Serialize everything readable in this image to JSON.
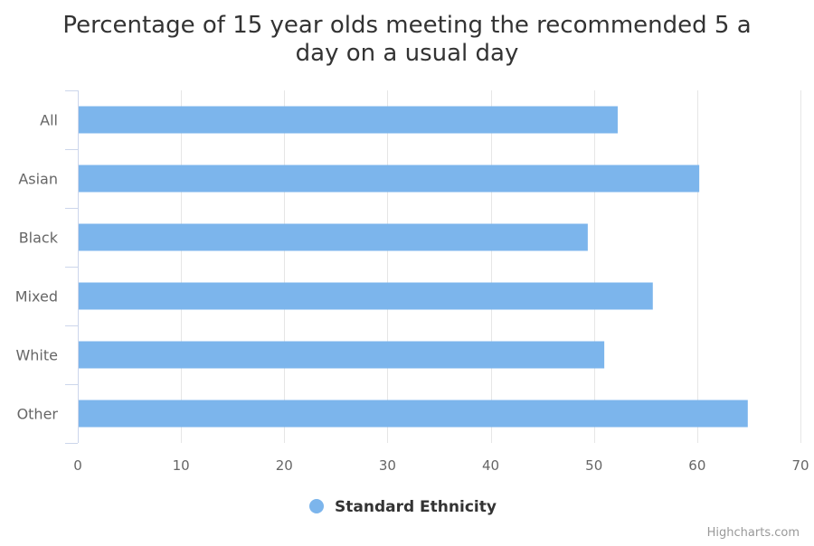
{
  "chart_data": {
    "type": "bar",
    "orientation": "horizontal",
    "title": "Percentage of 15 year olds meeting the recommended 5 a day on a usual day",
    "title_lines": [
      "Percentage of 15 year olds meeting the recommended 5 a",
      "day on a usual day"
    ],
    "categories": [
      "All",
      "Asian",
      "Black",
      "Mixed",
      "White",
      "Other"
    ],
    "series": [
      {
        "name": "Standard Ethnicity",
        "values": [
          52.3,
          60.2,
          49.4,
          55.7,
          51.0,
          64.9
        ],
        "color": "#7cb5ec"
      }
    ],
    "xlim": [
      0,
      70
    ],
    "ticks": [
      0,
      10,
      20,
      30,
      40,
      50,
      60,
      70
    ],
    "grid": true,
    "legend_position": "bottom-center"
  },
  "colors": {
    "bar": "#7cb5ec",
    "grid": "#e6e6e6",
    "axis_line": "#ccd6eb",
    "title": "#333333",
    "label": "#666666",
    "legend_text": "#333333",
    "credits": "#999999"
  },
  "credits": "Highcharts.com"
}
